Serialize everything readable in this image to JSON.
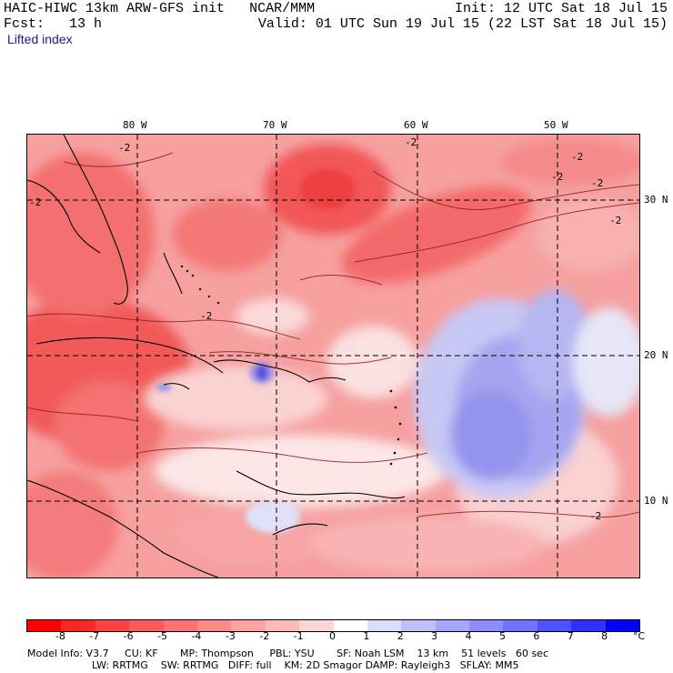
{
  "header": {
    "model_title": "HAIC-HIWC 13km ARW-GFS init",
    "org": "NCAR/MMM",
    "init": "Init: 12 UTC Sat 18 Jul 15",
    "fcst_label": "Fcst:",
    "fcst_value": "13 h",
    "valid": "Valid: 01 UTC Sun 19 Jul 15 (22 LST Sat 18 Jul 15)",
    "field": "Lifted index"
  },
  "map": {
    "lon_labels": [
      "80 W",
      "70 W",
      "60 W",
      "50 W"
    ],
    "lat_labels": [
      "30 N",
      "20 N",
      "10 N"
    ],
    "contour_label": "-2",
    "field_colors": {
      "strong_red": "#f04848",
      "red": "#f47070",
      "pink": "#f6a0a0",
      "light_pink": "#fad0d0",
      "white": "#fdf4f4",
      "light_blue": "#d6d6f6",
      "blue": "#a0a0f0",
      "mid_blue": "#8a8aee",
      "deep_blue": "#2020e0"
    }
  },
  "colorbar": {
    "ticks": [
      "-8",
      "-7",
      "-6",
      "-5",
      "-4",
      "-3",
      "-2",
      "-1",
      "0",
      "1",
      "2",
      "3",
      "4",
      "5",
      "6",
      "7",
      "8"
    ],
    "unit": "°C",
    "colors": [
      "#ff0000",
      "#ff2626",
      "#ff4040",
      "#ff5a5a",
      "#ff7272",
      "#ff8a8a",
      "#ffa2a2",
      "#ffbaba",
      "#ffd6d6",
      "#ffffff",
      "#dcdcff",
      "#c0c0ff",
      "#a6a6ff",
      "#8c8cff",
      "#7272ff",
      "#5050ff",
      "#3030ff",
      "#0000ff"
    ]
  },
  "footer": {
    "line1": "Model Info: V3.7     CU: KF       MP: Thompson     PBL: YSU       SF: Noah LSM    13 km    51 levels   60 sec",
    "line2": "LW: RRTMG    SW: RRTMG   DIFF: full    KM: 2D Smagor DAMP: Rayleigh3   SFLAY: MM5"
  }
}
